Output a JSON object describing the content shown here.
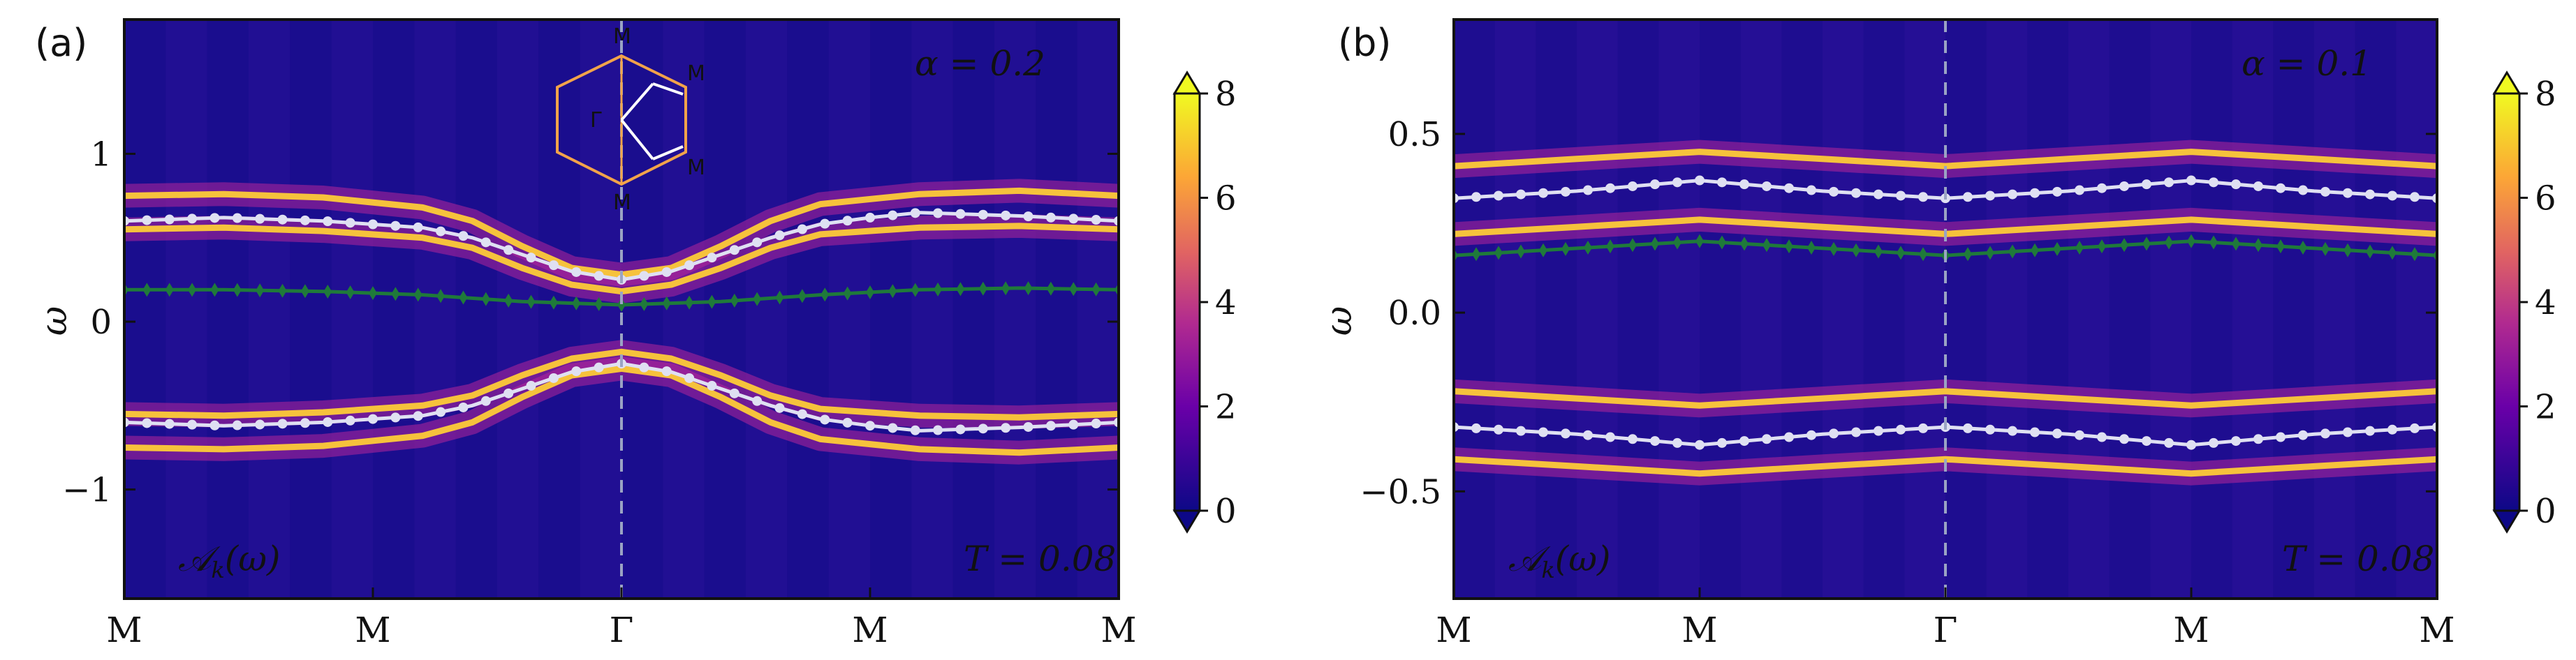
{
  "chart_data": [
    {
      "type": "heatmap",
      "panel_label": "(a)",
      "alpha_label": "α = 0.2",
      "temp_label": "T = 0.08",
      "spectral_label": "A_k(ω)",
      "spectral_label_main": "𝒜",
      "spectral_label_sub": "k",
      "spectral_label_tail": "(ω)",
      "ylabel": "ω",
      "ylim": [
        -1.65,
        1.8
      ],
      "y_ticks": [
        -1,
        0,
        1
      ],
      "y_tick_labels": [
        "−1",
        "0",
        "1"
      ],
      "x_tick_labels": [
        "M",
        "M",
        "Γ",
        "M",
        "M"
      ],
      "colorbar": {
        "min": 0,
        "max": 8,
        "ticks": [
          0,
          2,
          4,
          6,
          8
        ],
        "tick_labels": [
          "0",
          "2",
          "4",
          "6",
          "8"
        ],
        "extend": "both"
      },
      "inset": {
        "labels": [
          "M",
          "M",
          "Γ",
          "M",
          "M"
        ]
      },
      "series": [
        {
          "name": "white-upper",
          "color": "#dfe0f2",
          "x": [
            0,
            0.1,
            0.2,
            0.3,
            0.35,
            0.4,
            0.45,
            0.5,
            0.55,
            0.6,
            0.65,
            0.7,
            0.75,
            0.8,
            0.9,
            1
          ],
          "values": [
            0.6,
            0.62,
            0.6,
            0.56,
            0.5,
            0.4,
            0.3,
            0.25,
            0.3,
            0.4,
            0.5,
            0.58,
            0.62,
            0.65,
            0.63,
            0.6
          ]
        },
        {
          "name": "white-lower",
          "color": "#dfe0f2",
          "x": [
            0,
            0.1,
            0.2,
            0.3,
            0.35,
            0.4,
            0.45,
            0.5,
            0.55,
            0.6,
            0.65,
            0.7,
            0.75,
            0.8,
            0.9,
            1
          ],
          "values": [
            -0.6,
            -0.62,
            -0.6,
            -0.56,
            -0.5,
            -0.4,
            -0.3,
            -0.25,
            -0.3,
            -0.4,
            -0.5,
            -0.58,
            -0.62,
            -0.65,
            -0.63,
            -0.6
          ]
        },
        {
          "name": "green",
          "color": "#1f7a3a",
          "x": [
            0,
            0.1,
            0.2,
            0.3,
            0.4,
            0.5,
            0.6,
            0.7,
            0.8,
            0.9,
            1
          ],
          "values": [
            0.19,
            0.19,
            0.18,
            0.16,
            0.12,
            0.1,
            0.12,
            0.16,
            0.19,
            0.2,
            0.19
          ]
        }
      ],
      "bands": [
        {
          "x": [
            0,
            0.1,
            0.2,
            0.3,
            0.35,
            0.4,
            0.45,
            0.5,
            0.55,
            0.6,
            0.65,
            0.7,
            0.8,
            0.9,
            1
          ],
          "values": [
            0.75,
            0.76,
            0.74,
            0.68,
            0.6,
            0.45,
            0.32,
            0.28,
            0.32,
            0.45,
            0.6,
            0.7,
            0.76,
            0.78,
            0.75
          ]
        },
        {
          "x": [
            0,
            0.1,
            0.2,
            0.3,
            0.35,
            0.4,
            0.45,
            0.5,
            0.55,
            0.6,
            0.65,
            0.7,
            0.8,
            0.9,
            1
          ],
          "values": [
            0.55,
            0.56,
            0.54,
            0.5,
            0.44,
            0.32,
            0.22,
            0.18,
            0.22,
            0.32,
            0.44,
            0.52,
            0.56,
            0.57,
            0.55
          ]
        },
        {
          "x": [
            0,
            0.1,
            0.2,
            0.3,
            0.35,
            0.4,
            0.45,
            0.5,
            0.55,
            0.6,
            0.65,
            0.7,
            0.8,
            0.9,
            1
          ],
          "values": [
            -0.55,
            -0.56,
            -0.54,
            -0.5,
            -0.44,
            -0.32,
            -0.22,
            -0.18,
            -0.22,
            -0.32,
            -0.44,
            -0.52,
            -0.56,
            -0.57,
            -0.55
          ]
        },
        {
          "x": [
            0,
            0.1,
            0.2,
            0.3,
            0.35,
            0.4,
            0.45,
            0.5,
            0.55,
            0.6,
            0.65,
            0.7,
            0.8,
            0.9,
            1
          ],
          "values": [
            -0.75,
            -0.76,
            -0.74,
            -0.68,
            -0.6,
            -0.45,
            -0.32,
            -0.28,
            -0.32,
            -0.45,
            -0.6,
            -0.7,
            -0.76,
            -0.78,
            -0.75
          ]
        }
      ]
    },
    {
      "type": "heatmap",
      "panel_label": "(b)",
      "alpha_label": "α = 0.1",
      "temp_label": "T = 0.08",
      "spectral_label": "A_k(ω)",
      "spectral_label_main": "𝒜",
      "spectral_label_sub": "k",
      "spectral_label_tail": "(ω)",
      "ylabel": "ω",
      "ylim": [
        -0.8,
        0.82
      ],
      "y_ticks": [
        -0.5,
        0,
        0.5
      ],
      "y_tick_labels": [
        "−0.5",
        "0.0",
        "0.5"
      ],
      "x_tick_labels": [
        "M",
        "M",
        "Γ",
        "M",
        "M"
      ],
      "colorbar": {
        "min": 0,
        "max": 8,
        "ticks": [
          0,
          2,
          4,
          6,
          8
        ],
        "tick_labels": [
          "0",
          "2",
          "4",
          "6",
          "8"
        ],
        "extend": "both"
      },
      "series": [
        {
          "name": "white-upper",
          "color": "#dfe0f2",
          "x": [
            0,
            0.125,
            0.25,
            0.375,
            0.5,
            0.625,
            0.75,
            0.875,
            1
          ],
          "values": [
            0.32,
            0.34,
            0.37,
            0.34,
            0.32,
            0.34,
            0.37,
            0.34,
            0.32
          ]
        },
        {
          "name": "white-lower",
          "color": "#dfe0f2",
          "x": [
            0,
            0.125,
            0.25,
            0.375,
            0.5,
            0.625,
            0.75,
            0.875,
            1
          ],
          "values": [
            -0.32,
            -0.34,
            -0.37,
            -0.34,
            -0.32,
            -0.34,
            -0.37,
            -0.34,
            -0.32
          ]
        },
        {
          "name": "green",
          "color": "#1f7a3a",
          "x": [
            0,
            0.125,
            0.25,
            0.375,
            0.5,
            0.625,
            0.75,
            0.875,
            1
          ],
          "values": [
            0.16,
            0.18,
            0.2,
            0.18,
            0.16,
            0.18,
            0.2,
            0.18,
            0.16
          ]
        }
      ],
      "bands": [
        {
          "x": [
            0,
            0.125,
            0.25,
            0.375,
            0.5,
            0.625,
            0.75,
            0.875,
            1
          ],
          "values": [
            0.41,
            0.43,
            0.45,
            0.43,
            0.41,
            0.43,
            0.45,
            0.43,
            0.41
          ]
        },
        {
          "x": [
            0,
            0.125,
            0.25,
            0.375,
            0.5,
            0.625,
            0.75,
            0.875,
            1
          ],
          "values": [
            0.22,
            0.24,
            0.26,
            0.24,
            0.22,
            0.24,
            0.26,
            0.24,
            0.22
          ]
        },
        {
          "x": [
            0,
            0.125,
            0.25,
            0.375,
            0.5,
            0.625,
            0.75,
            0.875,
            1
          ],
          "values": [
            -0.22,
            -0.24,
            -0.26,
            -0.24,
            -0.22,
            -0.24,
            -0.26,
            -0.24,
            -0.22
          ]
        },
        {
          "x": [
            0,
            0.125,
            0.25,
            0.375,
            0.5,
            0.625,
            0.75,
            0.875,
            1
          ],
          "values": [
            -0.41,
            -0.43,
            -0.45,
            -0.43,
            -0.41,
            -0.43,
            -0.45,
            -0.43,
            -0.41
          ]
        }
      ]
    }
  ]
}
